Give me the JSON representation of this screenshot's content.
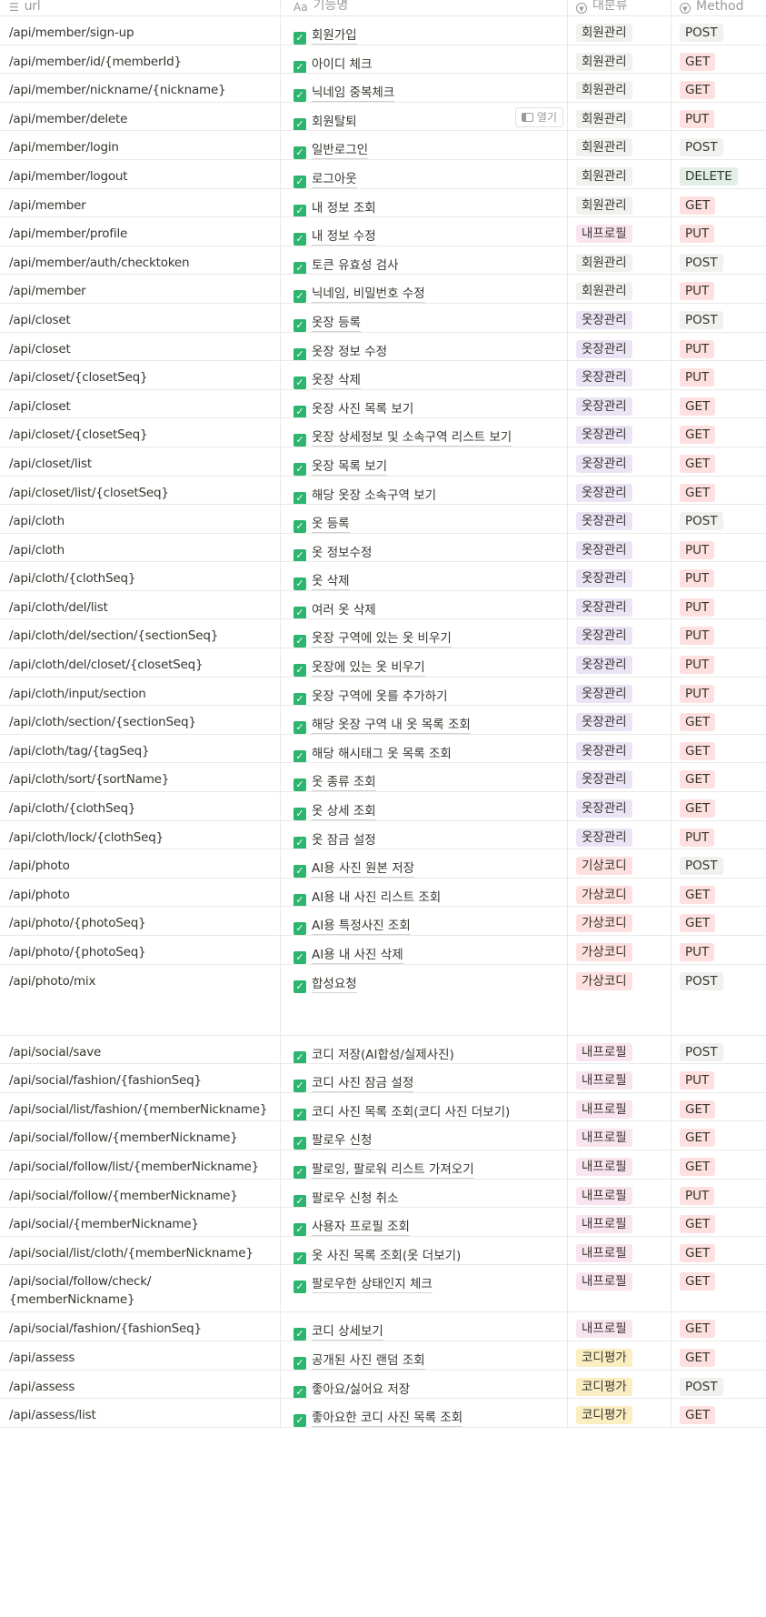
{
  "header": {
    "url_label": "url",
    "name_label": "기능명",
    "category_label": "대분류",
    "method_label": "Method",
    "url_icon": "list-icon",
    "name_icon": "text-aa-icon",
    "category_icon": "select-icon",
    "method_icon": "select-icon"
  },
  "open_button_label": "열기",
  "category_colors": {
    "회원관리": {
      "bg": "#f1f1ef",
      "fg": "#37352f"
    },
    "내프로필": {
      "bg": "#f9e5ef",
      "fg": "#37352f"
    },
    "옷장관리": {
      "bg": "#ebe4f4",
      "fg": "#37352f"
    },
    "기상코디": {
      "bg": "#fde0df",
      "fg": "#37352f"
    },
    "가상코디": {
      "bg": "#fde0df",
      "fg": "#37352f"
    },
    "코디평가": {
      "bg": "#fbeec3",
      "fg": "#37352f"
    }
  },
  "method_colors": {
    "POST": {
      "bg": "#f1f1ef",
      "fg": "#37352f"
    },
    "GET": {
      "bg": "#fde0df",
      "fg": "#37352f"
    },
    "PUT": {
      "bg": "#fde0df",
      "fg": "#37352f"
    },
    "DELETE": {
      "bg": "#e2efe6",
      "fg": "#37352f"
    }
  },
  "rows": [
    {
      "url": "/api/member/sign-up",
      "name": "회원가입",
      "category": "회원관리",
      "method": "POST"
    },
    {
      "url": "/api/member/id/{memberId}",
      "name": "아이디 체크",
      "category": "회원관리",
      "method": "GET"
    },
    {
      "url": "/api/member/nickname/{nickname}",
      "name": "닉네임 중복체크",
      "category": "회원관리",
      "method": "GET"
    },
    {
      "url": "/api/member/delete",
      "name": "회원탈퇴",
      "category": "회원관리",
      "method": "PUT",
      "open": true
    },
    {
      "url": "/api/member/login",
      "name": "일반로그인",
      "category": "회원관리",
      "method": "POST"
    },
    {
      "url": "/api/member/logout",
      "name": "로그아웃",
      "category": "회원관리",
      "method": "DELETE"
    },
    {
      "url": "/api/member",
      "name": "내 정보 조회",
      "category": "회원관리",
      "method": "GET"
    },
    {
      "url": "/api/member/profile",
      "name": "내 정보 수정",
      "category": "내프로필",
      "method": "PUT"
    },
    {
      "url": "/api/member/auth/checktoken",
      "name": "토큰 유효성 검사",
      "category": "회원관리",
      "method": "POST"
    },
    {
      "url": "/api/member",
      "name": "닉네임, 비밀번호 수정",
      "category": "회원관리",
      "method": "PUT"
    },
    {
      "url": "/api/closet",
      "name": "옷장 등록",
      "category": "옷장관리",
      "method": "POST"
    },
    {
      "url": "/api/closet",
      "name": "옷장 정보 수정",
      "category": "옷장관리",
      "method": "PUT"
    },
    {
      "url": "/api/closet/{closetSeq}",
      "name": "옷장 삭제",
      "category": "옷장관리",
      "method": "PUT"
    },
    {
      "url": "/api/closet",
      "name": "옷장 사진 목록 보기",
      "category": "옷장관리",
      "method": "GET"
    },
    {
      "url": "/api/closet/{closetSeq}",
      "name": "옷장 상세정보 및 소속구역 리스트 보기",
      "category": "옷장관리",
      "method": "GET"
    },
    {
      "url": "/api/closet/list",
      "name": "옷장 목록 보기",
      "category": "옷장관리",
      "method": "GET"
    },
    {
      "url": "/api/closet/list/{closetSeq}",
      "name": "해당 옷장 소속구역 보기",
      "category": "옷장관리",
      "method": "GET"
    },
    {
      "url": "/api/cloth",
      "name": "옷 등록",
      "category": "옷장관리",
      "method": "POST"
    },
    {
      "url": "/api/cloth",
      "name": "옷 정보수정",
      "category": "옷장관리",
      "method": "PUT"
    },
    {
      "url": "/api/cloth/{clothSeq}",
      "name": "옷 삭제",
      "category": "옷장관리",
      "method": "PUT"
    },
    {
      "url": "/api/cloth/del/list",
      "name": "여러 옷 삭제",
      "category": "옷장관리",
      "method": "PUT"
    },
    {
      "url": "/api/cloth/del/section/{sectionSeq}",
      "name": "옷장 구역에 있는 옷 비우기",
      "category": "옷장관리",
      "method": "PUT"
    },
    {
      "url": "/api/cloth/del/closet/{closetSeq}",
      "name": "옷장에 있는 옷 비우기",
      "category": "옷장관리",
      "method": "PUT"
    },
    {
      "url": "/api/cloth/input/section",
      "name": "옷장 구역에 옷를 추가하기",
      "category": "옷장관리",
      "method": "PUT"
    },
    {
      "url": "/api/cloth/section/{sectionSeq}",
      "name": "해당 옷장 구역 내 옷 목록 조회",
      "category": "옷장관리",
      "method": "GET"
    },
    {
      "url": "/api/cloth/tag/{tagSeq}",
      "name": "해당 해시태그 옷 목록 조회",
      "category": "옷장관리",
      "method": "GET"
    },
    {
      "url": "/api/cloth/sort/{sortName}",
      "name": "옷 종류 조회",
      "category": "옷장관리",
      "method": "GET"
    },
    {
      "url": "/api/cloth/{clothSeq}",
      "name": "옷 상세 조회",
      "category": "옷장관리",
      "method": "GET"
    },
    {
      "url": "/api/cloth/lock/{clothSeq}",
      "name": "옷 잠금 설정",
      "category": "옷장관리",
      "method": "PUT"
    },
    {
      "url": "/api/photo",
      "name": "AI용 사진 원본 저장",
      "category": "기상코디",
      "method": "POST"
    },
    {
      "url": "/api/photo",
      "name": "AI용 내 사진 리스트 조회",
      "category": "가상코디",
      "method": "GET"
    },
    {
      "url": "/api/photo/{photoSeq}",
      "name": "AI용 특정사진 조회",
      "category": "가상코디",
      "method": "GET"
    },
    {
      "url": "/api/photo/{photoSeq}",
      "name": "AI용 내 사진 삭제",
      "category": "가상코디",
      "method": "PUT"
    },
    {
      "url": "/api/photo/mix",
      "name": "합성요청",
      "category": "가상코디",
      "method": "POST",
      "tall": 78
    },
    {
      "url": "/api/social/save",
      "name": "코디 저장(AI합성/실제사진)",
      "category": "내프로필",
      "method": "POST"
    },
    {
      "url": "/api/social/fashion/{fashionSeq}",
      "name": "코디 사진 잠금 설정",
      "category": "내프로필",
      "method": "PUT"
    },
    {
      "url": "/api/social/list/fashion/{memberNickname}",
      "name": "코디 사진 목록 조회(코디 사진 더보기)",
      "category": "내프로필",
      "method": "GET"
    },
    {
      "url": "/api/social/follow/{memberNickname}",
      "name": "팔로우 신청",
      "category": "내프로필",
      "method": "GET"
    },
    {
      "url": "/api/social/follow/list/{memberNickname}",
      "name": "팔로잉, 팔로워 리스트 가져오기",
      "category": "내프로필",
      "method": "GET"
    },
    {
      "url": "/api/social/follow/{memberNickname}",
      "name": "팔로우 신청 취소",
      "category": "내프로필",
      "method": "PUT"
    },
    {
      "url": "/api/social/{memberNickname}",
      "name": "사용자 프로필 조회",
      "category": "내프로필",
      "method": "GET"
    },
    {
      "url": "/api/social/list/cloth/{memberNickname}",
      "name": "옷 사진 목록 조회(옷 더보기)",
      "category": "내프로필",
      "method": "GET"
    },
    {
      "url": "/api/social/follow/check/\n{memberNickname}",
      "name": "팔로우한 상태인지 체크",
      "category": "내프로필",
      "method": "GET",
      "tall": 52
    },
    {
      "url": "/api/social/fashion/{fashionSeq}",
      "name": "코디 상세보기",
      "category": "내프로필",
      "method": "GET"
    },
    {
      "url": "/api/assess",
      "name": "공개된 사진 랜덤 조회",
      "category": "코디평가",
      "method": "GET"
    },
    {
      "url": "/api/assess",
      "name": "좋아요/싫어요 저장",
      "category": "코디평가",
      "method": "POST"
    },
    {
      "url": "/api/assess/list",
      "name": "좋아요한 코디 사진 목록 조회",
      "category": "코디평가",
      "method": "GET"
    }
  ]
}
